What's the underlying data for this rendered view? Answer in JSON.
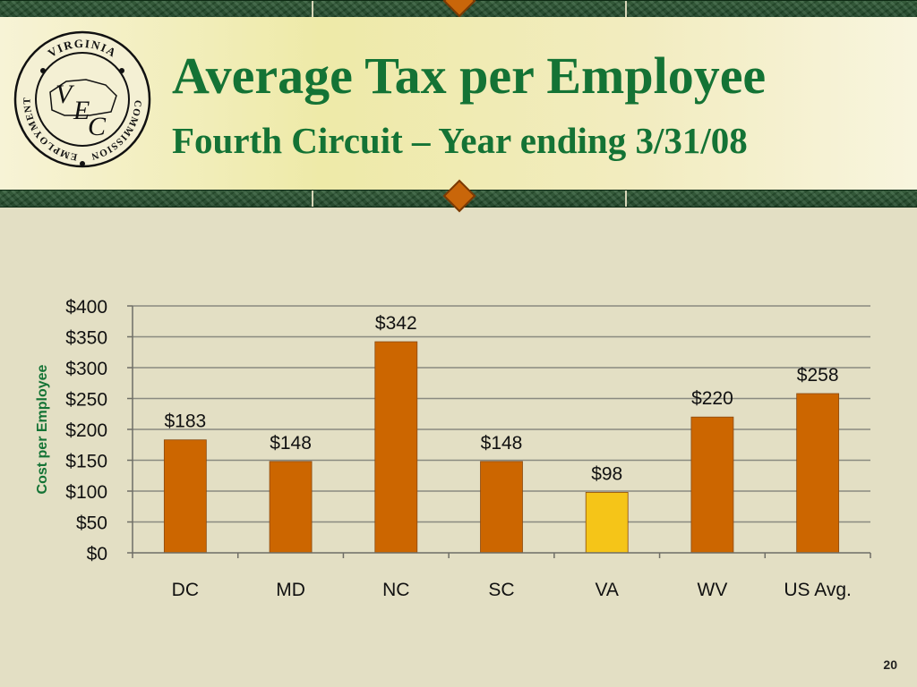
{
  "slide": {
    "title": "Average Tax per Employee",
    "subtitle": "Fourth Circuit – Year ending 3/31/08",
    "page_number": "20"
  },
  "logo": {
    "top_text": "VIRGINIA",
    "left_text": "EMPLOYMENT",
    "right_text": "COMMISSION",
    "letters": [
      "V",
      "E",
      "C"
    ]
  },
  "chart_data": {
    "type": "bar",
    "categories": [
      "DC",
      "MD",
      "NC",
      "SC",
      "VA",
      "WV",
      "US Avg."
    ],
    "values": [
      183,
      148,
      342,
      148,
      98,
      220,
      258
    ],
    "data_labels": [
      "$183",
      "$148",
      "$342",
      "$148",
      "$98",
      "$220",
      "$258"
    ],
    "ylabel": "Cost per Employee",
    "ylim": [
      0,
      400
    ],
    "yticks": [
      0,
      50,
      100,
      150,
      200,
      250,
      300,
      350,
      400
    ],
    "ytick_labels": [
      "$0",
      "$50",
      "$100",
      "$150",
      "$200",
      "$250",
      "$300",
      "$350",
      "$400"
    ],
    "grid": true,
    "bar_color": "#cc6600",
    "highlight_category": "VA",
    "highlight_color": "#f5c518",
    "title_color": "#147335"
  }
}
